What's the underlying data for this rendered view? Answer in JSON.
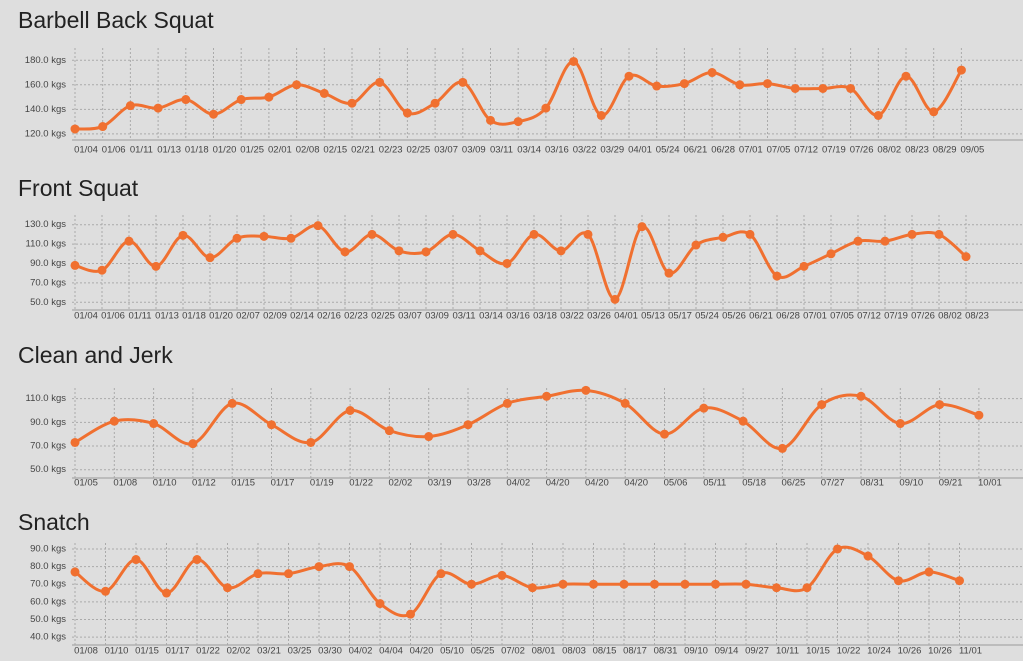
{
  "chart_data": [
    {
      "type": "line",
      "title": "Barbell Back Squat",
      "color": "#f07030",
      "grid": true,
      "categories": [
        "01/04",
        "01/06",
        "01/11",
        "01/13",
        "01/18",
        "01/20",
        "01/25",
        "02/01",
        "02/08",
        "02/15",
        "02/21",
        "02/23",
        "02/25",
        "03/07",
        "03/09",
        "03/11",
        "03/14",
        "03/16",
        "03/22",
        "03/29",
        "04/01",
        "05/24",
        "06/21",
        "06/28",
        "07/01",
        "07/05",
        "07/12",
        "07/19",
        "07/26",
        "08/02",
        "08/23",
        "08/29",
        "09/05"
      ],
      "values": [
        124,
        126,
        143,
        141,
        148,
        136,
        148,
        150,
        160,
        153,
        145,
        162,
        137,
        145,
        162,
        131,
        130,
        141,
        179,
        135,
        167,
        159,
        161,
        170,
        160,
        161,
        157,
        157,
        157,
        135,
        167,
        138,
        172
      ],
      "ylim": [
        115,
        190
      ],
      "yticks": [
        {
          "value": 120,
          "label": "120.0 kgs"
        },
        {
          "value": 140,
          "label": "140.0 kgs"
        },
        {
          "value": 160,
          "label": "160.0 kgs"
        },
        {
          "value": 180,
          "label": "180.0 kgs"
        }
      ]
    },
    {
      "type": "line",
      "title": "Front Squat",
      "color": "#f07030",
      "grid": true,
      "categories": [
        "01/04",
        "01/06",
        "01/11",
        "01/13",
        "01/18",
        "01/20",
        "02/07",
        "02/09",
        "02/14",
        "02/16",
        "02/23",
        "02/25",
        "03/07",
        "03/09",
        "03/11",
        "03/14",
        "03/16",
        "03/18",
        "03/22",
        "03/26",
        "04/01",
        "05/13",
        "05/17",
        "05/24",
        "05/26",
        "06/21",
        "06/28",
        "07/01",
        "07/05",
        "07/12",
        "07/19",
        "07/26",
        "08/02",
        "08/23"
      ],
      "values": [
        88,
        83,
        113,
        87,
        119,
        96,
        116,
        118,
        116,
        129,
        102,
        120,
        103,
        102,
        120,
        103,
        90,
        120,
        103,
        120,
        53,
        128,
        80,
        109,
        117,
        120,
        77,
        87,
        100,
        113,
        113,
        120,
        120,
        97
      ],
      "ylim": [
        42,
        140
      ],
      "yticks": [
        {
          "value": 50,
          "label": "50.0 kgs"
        },
        {
          "value": 70,
          "label": "70.0 kgs"
        },
        {
          "value": 90,
          "label": "90.0 kgs"
        },
        {
          "value": 110,
          "label": "110.0 kgs"
        },
        {
          "value": 130,
          "label": "130.0 kgs"
        }
      ]
    },
    {
      "type": "line",
      "title": "Clean and Jerk",
      "color": "#f07030",
      "grid": true,
      "categories": [
        "01/05",
        "01/08",
        "01/10",
        "01/12",
        "01/15",
        "01/17",
        "01/19",
        "01/22",
        "02/02",
        "03/19",
        "03/28",
        "04/02",
        "04/20",
        "04/20",
        "04/20",
        "05/06",
        "05/11",
        "05/18",
        "06/25",
        "07/27",
        "08/31",
        "09/10",
        "09/21",
        "10/01"
      ],
      "values": [
        73,
        91,
        89,
        72,
        106,
        88,
        73,
        100,
        83,
        78,
        88,
        106,
        112,
        117,
        106,
        80,
        102,
        91,
        68,
        105,
        112,
        89,
        105,
        96
      ],
      "ylim": [
        43,
        119
      ],
      "yticks": [
        {
          "value": 50,
          "label": "50.0 kgs"
        },
        {
          "value": 70,
          "label": "70.0 kgs"
        },
        {
          "value": 90,
          "label": "90.0 kgs"
        },
        {
          "value": 110,
          "label": "110.0 kgs"
        }
      ]
    },
    {
      "type": "line",
      "title": "Snatch",
      "color": "#f07030",
      "grid": true,
      "categories": [
        "01/08",
        "01/10",
        "01/15",
        "01/17",
        "01/22",
        "02/02",
        "03/21",
        "03/25",
        "03/30",
        "04/02",
        "04/04",
        "04/20",
        "05/10",
        "05/25",
        "07/02",
        "08/01",
        "08/03",
        "08/15",
        "08/17",
        "08/31",
        "09/10",
        "09/14",
        "09/27",
        "10/11",
        "10/15",
        "10/22",
        "10/24",
        "10/26",
        "10/26",
        "11/01"
      ],
      "values": [
        77,
        66,
        84,
        65,
        84,
        68,
        76,
        76,
        80,
        80,
        59,
        53,
        76,
        70,
        75,
        68,
        70,
        70,
        70,
        70,
        70,
        70,
        70,
        68,
        68,
        90,
        86,
        72,
        77,
        72
      ],
      "ylim": [
        35.5,
        93.4
      ],
      "yticks": [
        {
          "value": 40,
          "label": "40.0 kgs"
        },
        {
          "value": 50,
          "label": "50.0 kgs"
        },
        {
          "value": 60,
          "label": "60.0 kgs"
        },
        {
          "value": 70,
          "label": "70.0 kgs"
        },
        {
          "value": 80,
          "label": "80.0 kgs"
        },
        {
          "value": 90,
          "label": "90.0 kgs"
        }
      ]
    }
  ]
}
